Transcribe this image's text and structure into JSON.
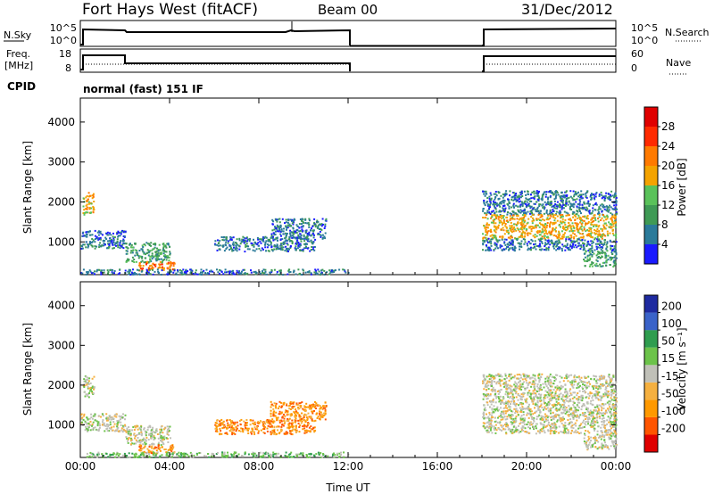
{
  "header": {
    "title": "Fort Hays West (fitACF)",
    "beam": "Beam 00",
    "date": "31/Dec/2012"
  },
  "noise_panel": {
    "left_label": "N.Sky",
    "left_ticks": [
      "10^5",
      "10^0"
    ],
    "right_ticks": [
      "10^5",
      "10^0"
    ],
    "right_label": "N.Search",
    "right_label_line": "dotted"
  },
  "freq_panel": {
    "left_label": [
      "Freq.",
      "[MHz]"
    ],
    "left_ticks": [
      "18",
      "8"
    ],
    "right_ticks": [
      "60",
      "0"
    ],
    "right_label": "Nave",
    "right_label_line": "dotted",
    "cpid_label": "CPID"
  },
  "cpid_text": "normal (fast) 151 IF",
  "colors": {
    "power": [
      "#1a1aff",
      "#2a7a9a",
      "#3f9a55",
      "#5ac25a",
      "#f4a300",
      "#ff7a00",
      "#ff2a00",
      "#e00000"
    ],
    "velocity": [
      "#e00000",
      "#ff5500",
      "#ff9900",
      "#f5b040",
      "#c0c0b8",
      "#6cc34a",
      "#2f9d4f",
      "#3a63c9",
      "#1e2aa0"
    ]
  },
  "chart_data": [
    {
      "type": "heatmap",
      "name": "power",
      "xlabel": "",
      "ylabel": "Slant Range [km]",
      "x_ticks": [
        "00:00",
        "04:00",
        "08:00",
        "12:00",
        "16:00",
        "20:00",
        "00:00"
      ],
      "xlim_hours": [
        0,
        24
      ],
      "y_ticks": [
        1000,
        2000,
        3000,
        4000
      ],
      "ylim_km": [
        180,
        4600
      ],
      "colorbar": {
        "label": "Power [dB]",
        "ticks": [
          4,
          8,
          12,
          16,
          20,
          24,
          28
        ],
        "range": [
          0,
          32
        ]
      },
      "data_gaps_hours": [
        [
          12,
          18
        ]
      ],
      "regions": [
        {
          "t0": 0.1,
          "t1": 0.6,
          "r0": 1700,
          "r1": 2250,
          "level": 4
        },
        {
          "t0": 0.0,
          "t1": 2.0,
          "r0": 850,
          "r1": 1300,
          "level": 1
        },
        {
          "t0": 2.0,
          "t1": 4.0,
          "r0": 500,
          "r1": 1000,
          "level": 2
        },
        {
          "t0": 2.6,
          "t1": 4.2,
          "r0": 300,
          "r1": 520,
          "level": 5
        },
        {
          "t0": 6.0,
          "t1": 10.5,
          "r0": 780,
          "r1": 1150,
          "level": 1
        },
        {
          "t0": 8.5,
          "t1": 11.0,
          "r0": 1100,
          "r1": 1600,
          "level": 1
        },
        {
          "t0": 0.0,
          "t1": 12.0,
          "r0": 200,
          "r1": 330,
          "level": 1
        },
        {
          "t0": 18.0,
          "t1": 24.0,
          "r0": 1700,
          "r1": 2300,
          "level": 1
        },
        {
          "t0": 18.0,
          "t1": 24.0,
          "r0": 1100,
          "r1": 1700,
          "level": 4
        },
        {
          "t0": 18.0,
          "t1": 24.0,
          "r0": 800,
          "r1": 1100,
          "level": 1
        },
        {
          "t0": 22.5,
          "t1": 24.0,
          "r0": 400,
          "r1": 800,
          "level": 2
        }
      ]
    },
    {
      "type": "heatmap",
      "name": "velocity",
      "xlabel": "Time UT",
      "ylabel": "Slant Range [km]",
      "x_ticks": [
        "00:00",
        "04:00",
        "08:00",
        "12:00",
        "16:00",
        "20:00",
        "00:00"
      ],
      "xlim_hours": [
        0,
        24
      ],
      "y_ticks": [
        1000,
        2000,
        3000,
        4000
      ],
      "ylim_km": [
        180,
        4600
      ],
      "colorbar": {
        "label": "Velocity [m s⁻¹]",
        "ticks": [
          200,
          100,
          50,
          15,
          -15,
          -50,
          -100,
          -200
        ]
      },
      "data_gaps_hours": [
        [
          12,
          18
        ]
      ],
      "regions": [
        {
          "t0": 0.1,
          "t1": 0.6,
          "r0": 1700,
          "r1": 2250,
          "level": 4
        },
        {
          "t0": 0.0,
          "t1": 2.0,
          "r0": 850,
          "r1": 1300,
          "level": 4
        },
        {
          "t0": 2.0,
          "t1": 4.0,
          "r0": 500,
          "r1": 1000,
          "level": 4
        },
        {
          "t0": 2.6,
          "t1": 4.2,
          "r0": 300,
          "r1": 520,
          "level": 2
        },
        {
          "t0": 6.0,
          "t1": 10.5,
          "r0": 780,
          "r1": 1150,
          "level": 2
        },
        {
          "t0": 8.5,
          "t1": 11.0,
          "r0": 1100,
          "r1": 1600,
          "level": 2
        },
        {
          "t0": 0.0,
          "t1": 12.0,
          "r0": 200,
          "r1": 330,
          "level": 5
        },
        {
          "t0": 18.0,
          "t1": 24.0,
          "r0": 1700,
          "r1": 2300,
          "level": 4
        },
        {
          "t0": 18.0,
          "t1": 24.0,
          "r0": 1100,
          "r1": 1700,
          "level": 4
        },
        {
          "t0": 18.0,
          "t1": 24.0,
          "r0": 800,
          "r1": 1100,
          "level": 4
        },
        {
          "t0": 22.5,
          "t1": 24.0,
          "r0": 400,
          "r1": 800,
          "level": 4
        }
      ]
    }
  ]
}
